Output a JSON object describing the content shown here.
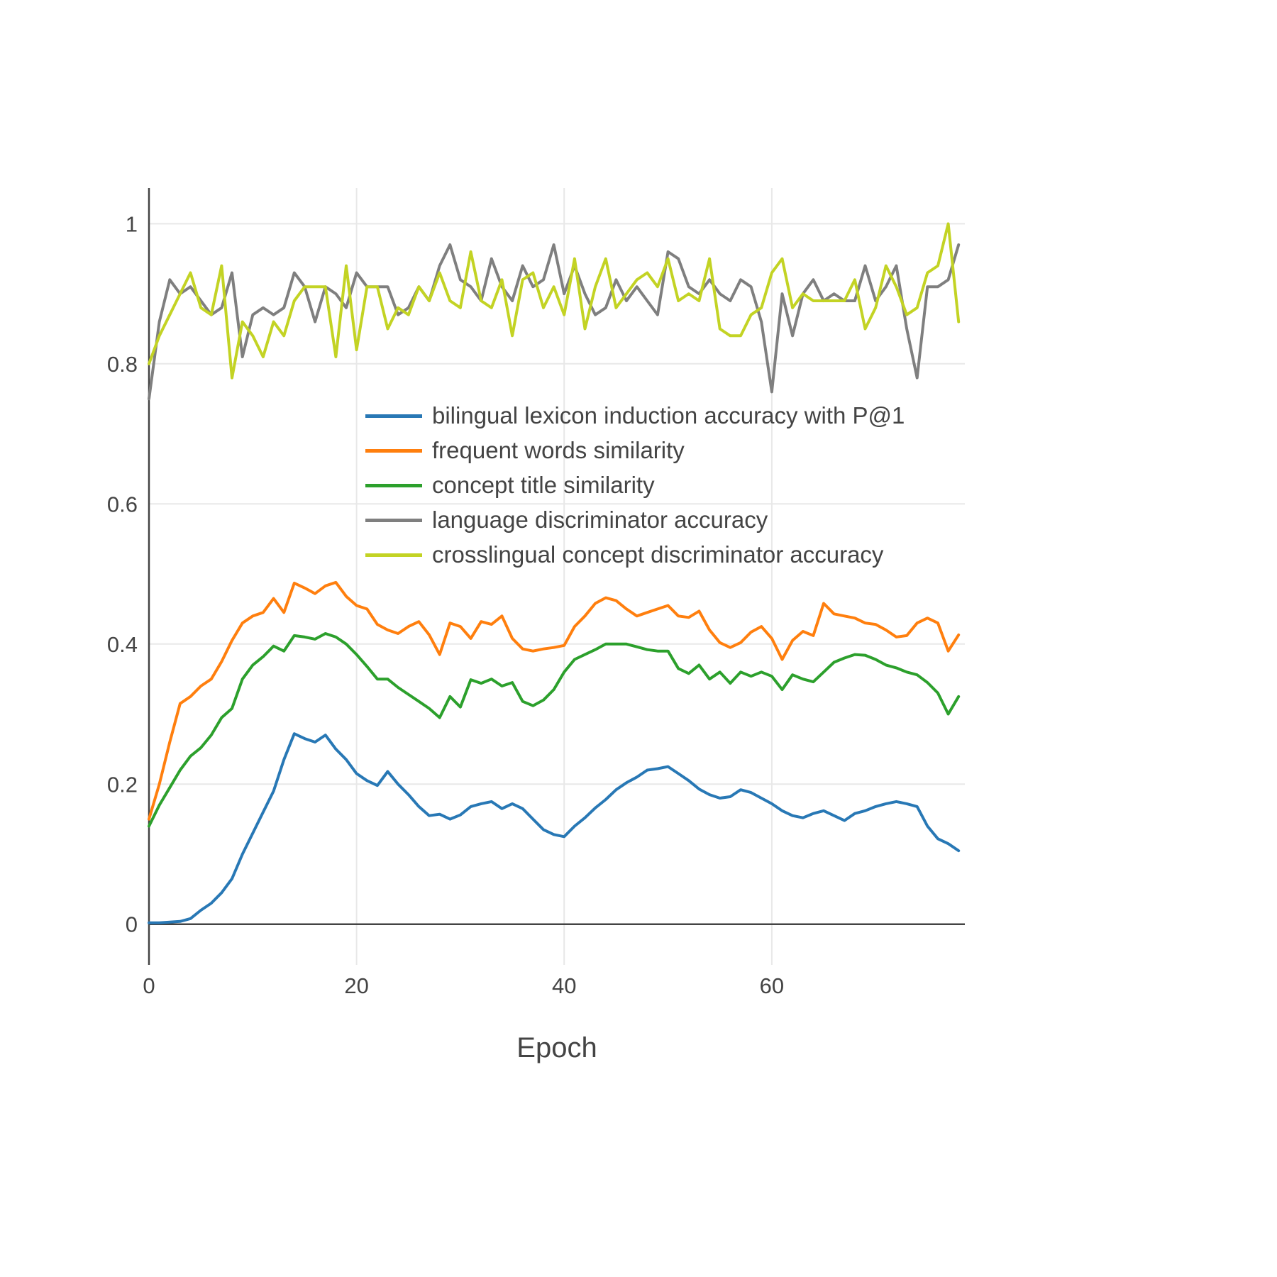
{
  "chart_data": {
    "type": "line",
    "title": "",
    "xlabel": "Epoch",
    "ylabel": "",
    "grid": true,
    "legend_position": "inside-left-middle",
    "x_ticks": [
      0,
      20,
      40,
      60
    ],
    "y_ticks": [
      0,
      0.2,
      0.4,
      0.6,
      0.8,
      1
    ],
    "xlim": [
      0,
      78.6
    ],
    "ylim": [
      -0.058,
      1.051
    ],
    "x_step": 1,
    "axis_color": "#444444",
    "grid_color": "#e8e8e8",
    "series": [
      {
        "name": "bilingual lexicon induction accuracy with P@1",
        "color": "#2878b5",
        "values": [
          0.002,
          0.002,
          0.003,
          0.004,
          0.008,
          0.02,
          0.03,
          0.045,
          0.065,
          0.1,
          0.13,
          0.16,
          0.19,
          0.235,
          0.272,
          0.265,
          0.26,
          0.27,
          0.25,
          0.235,
          0.215,
          0.205,
          0.198,
          0.218,
          0.2,
          0.185,
          0.168,
          0.155,
          0.157,
          0.15,
          0.156,
          0.168,
          0.172,
          0.175,
          0.165,
          0.172,
          0.165,
          0.15,
          0.135,
          0.128,
          0.125,
          0.14,
          0.152,
          0.166,
          0.178,
          0.192,
          0.202,
          0.21,
          0.22,
          0.222,
          0.225,
          0.215,
          0.205,
          0.193,
          0.185,
          0.18,
          0.182,
          0.192,
          0.188,
          0.18,
          0.172,
          0.162,
          0.155,
          0.152,
          0.158,
          0.162,
          0.155,
          0.148,
          0.158,
          0.162,
          0.168,
          0.172,
          0.175,
          0.172,
          0.168,
          0.14,
          0.122,
          0.115,
          0.105
        ]
      },
      {
        "name": "frequent words similarity",
        "color": "#ff7f0e",
        "values": [
          0.15,
          0.2,
          0.26,
          0.315,
          0.325,
          0.34,
          0.35,
          0.375,
          0.405,
          0.43,
          0.44,
          0.445,
          0.465,
          0.445,
          0.487,
          0.48,
          0.472,
          0.483,
          0.488,
          0.468,
          0.455,
          0.45,
          0.428,
          0.42,
          0.415,
          0.425,
          0.432,
          0.413,
          0.385,
          0.43,
          0.425,
          0.408,
          0.432,
          0.428,
          0.44,
          0.408,
          0.393,
          0.39,
          0.393,
          0.395,
          0.398,
          0.425,
          0.44,
          0.458,
          0.466,
          0.462,
          0.45,
          0.44,
          0.445,
          0.45,
          0.455,
          0.44,
          0.438,
          0.447,
          0.42,
          0.402,
          0.395,
          0.402,
          0.417,
          0.425,
          0.408,
          0.378,
          0.405,
          0.418,
          0.412,
          0.458,
          0.443,
          0.44,
          0.437,
          0.43,
          0.428,
          0.42,
          0.41,
          0.412,
          0.43,
          0.437,
          0.43,
          0.39,
          0.413
        ]
      },
      {
        "name": "concept title similarity",
        "color": "#2ca02c",
        "values": [
          0.14,
          0.17,
          0.195,
          0.22,
          0.24,
          0.252,
          0.27,
          0.295,
          0.308,
          0.35,
          0.37,
          0.382,
          0.397,
          0.39,
          0.412,
          0.41,
          0.407,
          0.415,
          0.41,
          0.4,
          0.385,
          0.368,
          0.35,
          0.35,
          0.338,
          0.328,
          0.318,
          0.308,
          0.295,
          0.325,
          0.31,
          0.349,
          0.344,
          0.35,
          0.34,
          0.345,
          0.318,
          0.312,
          0.32,
          0.335,
          0.36,
          0.378,
          0.385,
          0.392,
          0.4,
          0.4,
          0.4,
          0.396,
          0.392,
          0.39,
          0.39,
          0.365,
          0.358,
          0.37,
          0.35,
          0.36,
          0.344,
          0.36,
          0.354,
          0.36,
          0.354,
          0.335,
          0.356,
          0.35,
          0.346,
          0.36,
          0.374,
          0.38,
          0.385,
          0.384,
          0.378,
          0.37,
          0.366,
          0.36,
          0.356,
          0.345,
          0.33,
          0.3,
          0.325
        ]
      },
      {
        "name": "language discriminator accuracy",
        "color": "#7f7f7f",
        "values": [
          0.75,
          0.86,
          0.92,
          0.9,
          0.91,
          0.89,
          0.87,
          0.88,
          0.93,
          0.81,
          0.87,
          0.88,
          0.87,
          0.88,
          0.93,
          0.91,
          0.86,
          0.91,
          0.9,
          0.88,
          0.93,
          0.91,
          0.91,
          0.91,
          0.87,
          0.88,
          0.91,
          0.89,
          0.94,
          0.97,
          0.92,
          0.91,
          0.89,
          0.95,
          0.91,
          0.89,
          0.94,
          0.91,
          0.92,
          0.97,
          0.9,
          0.94,
          0.9,
          0.87,
          0.88,
          0.92,
          0.89,
          0.91,
          0.89,
          0.87,
          0.96,
          0.95,
          0.91,
          0.9,
          0.92,
          0.9,
          0.89,
          0.92,
          0.91,
          0.86,
          0.76,
          0.9,
          0.84,
          0.9,
          0.92,
          0.89,
          0.9,
          0.89,
          0.89,
          0.94,
          0.89,
          0.91,
          0.94,
          0.85,
          0.78,
          0.91,
          0.91,
          0.92,
          0.97
        ]
      },
      {
        "name": "crosslingual concept discriminator accuracy",
        "color": "#c3d324",
        "values": [
          0.8,
          0.84,
          0.87,
          0.9,
          0.93,
          0.88,
          0.87,
          0.94,
          0.78,
          0.86,
          0.84,
          0.81,
          0.86,
          0.84,
          0.89,
          0.91,
          0.91,
          0.91,
          0.81,
          0.94,
          0.82,
          0.91,
          0.91,
          0.85,
          0.88,
          0.87,
          0.91,
          0.89,
          0.93,
          0.89,
          0.88,
          0.96,
          0.89,
          0.88,
          0.92,
          0.84,
          0.92,
          0.93,
          0.88,
          0.91,
          0.87,
          0.95,
          0.85,
          0.91,
          0.95,
          0.88,
          0.9,
          0.92,
          0.93,
          0.91,
          0.95,
          0.89,
          0.9,
          0.89,
          0.95,
          0.85,
          0.84,
          0.84,
          0.87,
          0.88,
          0.93,
          0.95,
          0.88,
          0.9,
          0.89,
          0.89,
          0.89,
          0.89,
          0.92,
          0.85,
          0.88,
          0.94,
          0.91,
          0.87,
          0.88,
          0.93,
          0.94,
          1.0,
          0.86
        ]
      }
    ]
  }
}
